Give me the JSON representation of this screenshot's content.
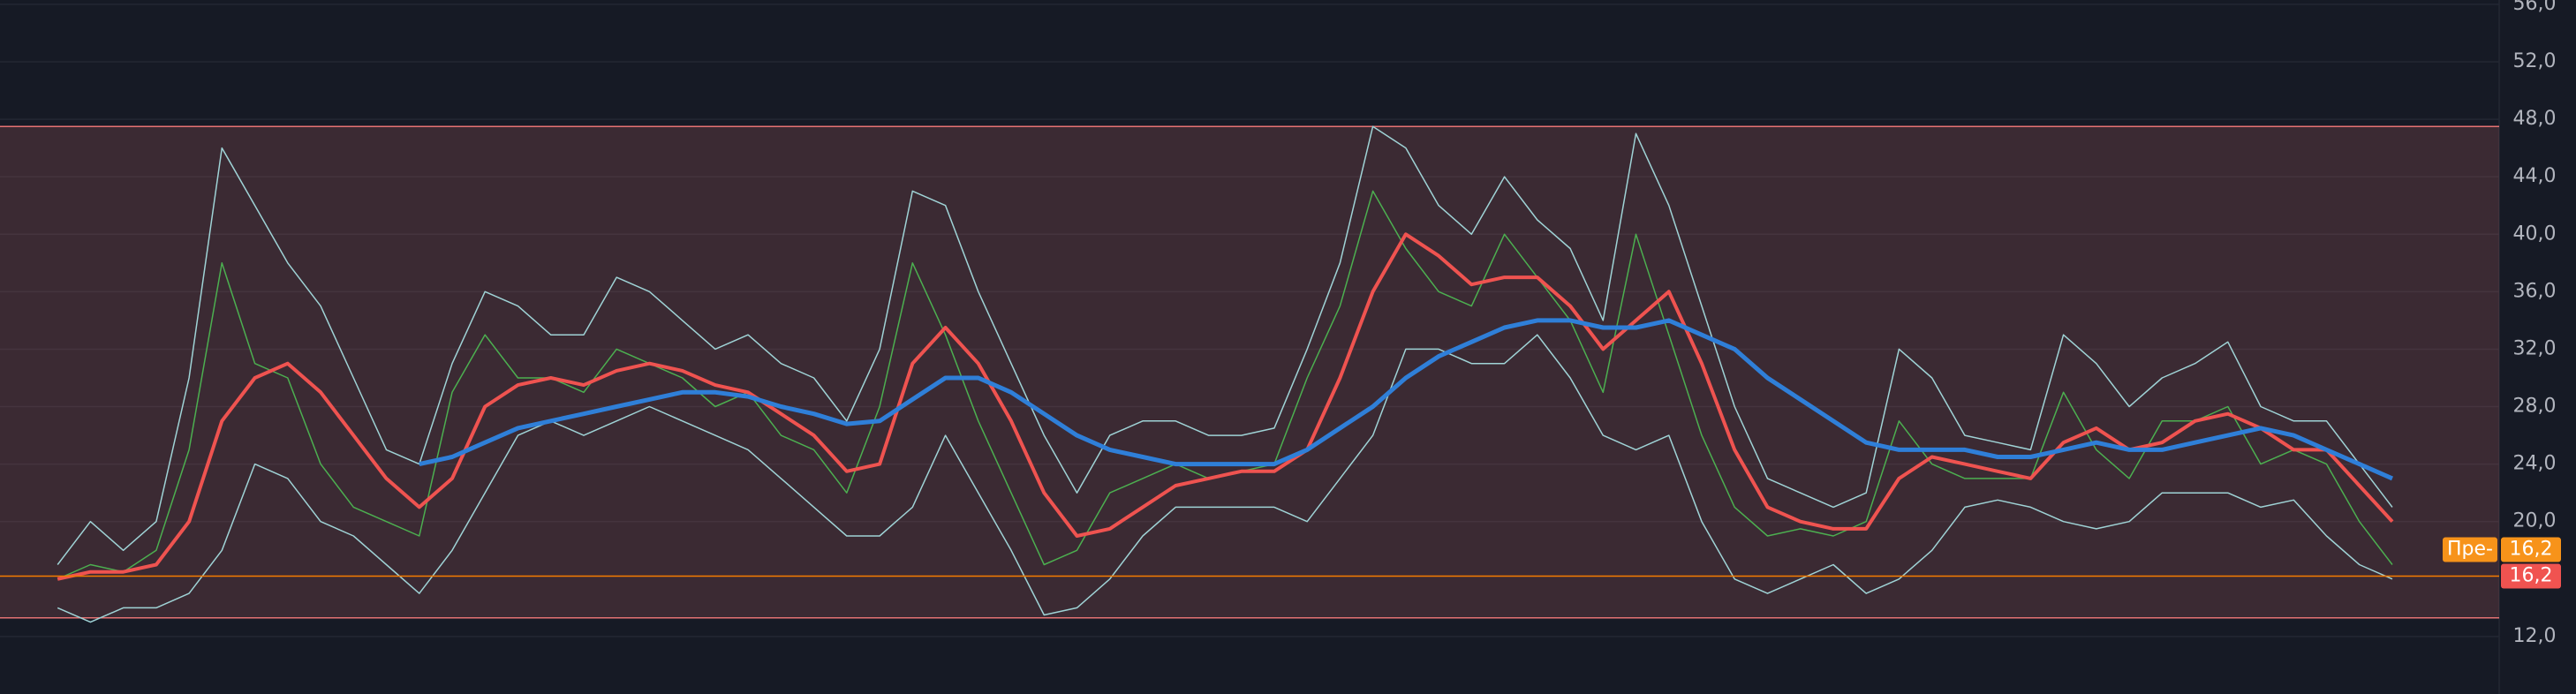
{
  "chart_data": {
    "type": "line",
    "ylim": [
      8,
      56.3
    ],
    "xlim": [
      -1.75,
      74.25
    ],
    "yticks": [
      {
        "value": 12,
        "label": "12,0"
      },
      {
        "value": 20,
        "label": "20,0"
      },
      {
        "value": 24,
        "label": "24,0"
      },
      {
        "value": 28,
        "label": "28,0"
      },
      {
        "value": 32,
        "label": "32,0"
      },
      {
        "value": 36,
        "label": "36,0"
      },
      {
        "value": 40,
        "label": "40,0"
      },
      {
        "value": 44,
        "label": "44,0"
      },
      {
        "value": 48,
        "label": "48,0"
      },
      {
        "value": 52,
        "label": "52,0"
      },
      {
        "value": 56,
        "label": "56,0"
      }
    ],
    "grid": true,
    "x": [
      0,
      1,
      2,
      3,
      4,
      5,
      6,
      7,
      8,
      9,
      10,
      11,
      12,
      13,
      14,
      15,
      16,
      17,
      18,
      19,
      20,
      21,
      22,
      23,
      24,
      25,
      26,
      27,
      28,
      29,
      30,
      31,
      32,
      33,
      34,
      35,
      36,
      37,
      38,
      39,
      40,
      41,
      42,
      43,
      44,
      45,
      46,
      47,
      48,
      49,
      50,
      51,
      52,
      53,
      54,
      55,
      56,
      57,
      58,
      59,
      60,
      61,
      62,
      63,
      64,
      65,
      66,
      67,
      68,
      69,
      70,
      71
    ],
    "zone": {
      "low": 13.3,
      "high": 47.5,
      "color": "#e57373"
    },
    "price_line": {
      "value": 16.2,
      "color": "#f57c00"
    },
    "price_badges": [
      {
        "label": "Пре-",
        "value": 16.2,
        "value_label": "16,2",
        "color": "#f7931a"
      },
      {
        "value": 16.2,
        "value_label": "16,2",
        "color": "#f05350"
      }
    ],
    "series": [
      {
        "color": "#9fd3d6",
        "width": 1.5,
        "values": [
          17,
          20,
          18,
          20,
          30,
          46,
          42,
          38,
          35,
          30,
          25,
          24,
          31,
          36,
          35,
          33,
          33,
          37,
          36,
          34,
          32,
          33,
          31,
          30,
          27,
          32,
          43,
          42,
          36,
          31,
          26,
          22,
          26,
          27,
          27,
          26,
          26,
          26.5,
          32,
          38,
          47.5,
          46,
          42,
          40,
          44,
          41,
          39,
          34,
          47,
          42,
          35,
          28,
          23,
          22,
          21,
          22,
          32,
          30,
          26,
          25.5,
          25,
          33,
          31,
          28,
          30,
          31,
          32.5,
          28,
          27,
          27,
          24,
          21
        ]
      },
      {
        "color": "#9fd3d6",
        "width": 1.5,
        "values": [
          14,
          13,
          14,
          14,
          15,
          18,
          24,
          23,
          20,
          19,
          17,
          15,
          18,
          22,
          26,
          27,
          26,
          27,
          28,
          27,
          26,
          25,
          23,
          21,
          19,
          19,
          21,
          26,
          22,
          18,
          13.5,
          14,
          16,
          19,
          21,
          21,
          21,
          21,
          20,
          23,
          26,
          32,
          32,
          31,
          31,
          33,
          30,
          26,
          25,
          26,
          20,
          16,
          15,
          16,
          17,
          15,
          16,
          18,
          21,
          21.5,
          21,
          20,
          19.5,
          20,
          22,
          22,
          22,
          21,
          21.5,
          19,
          17,
          16
        ]
      },
      {
        "color": "#4caf50",
        "width": 1.5,
        "values": [
          16,
          17,
          16.5,
          18,
          25,
          38,
          31,
          30,
          24,
          21,
          20,
          19,
          29,
          33,
          30,
          30,
          29,
          32,
          31,
          30,
          28,
          29,
          26,
          25,
          22,
          28,
          38,
          33,
          27,
          22,
          17,
          18,
          22,
          23,
          24,
          23,
          23.5,
          24,
          30,
          35,
          43,
          39,
          36,
          35,
          40,
          37,
          34,
          29,
          40,
          33,
          26,
          21,
          19,
          19.5,
          19,
          20,
          27,
          24,
          23,
          23,
          23,
          29,
          25,
          23,
          27,
          27,
          28,
          24,
          25,
          24,
          20,
          17
        ]
      },
      {
        "color": "#ef5350",
        "width": 4,
        "values": [
          16,
          16.5,
          16.5,
          17,
          20,
          27,
          30,
          31,
          29,
          26,
          23,
          21,
          23,
          28,
          29.5,
          30,
          29.5,
          30.5,
          31,
          30.5,
          29.5,
          29,
          27.5,
          26,
          23.5,
          24,
          31,
          33.5,
          31,
          27,
          22,
          19,
          19.5,
          21,
          22.5,
          23,
          23.5,
          23.5,
          25,
          30,
          36,
          40,
          38.5,
          36.5,
          37,
          37,
          35,
          32,
          34,
          36,
          31,
          25,
          21,
          20,
          19.5,
          19.5,
          23,
          24.5,
          24,
          23.5,
          23,
          25.5,
          26.5,
          25,
          25.5,
          27,
          27.5,
          26.5,
          25,
          25,
          22.5,
          20
        ]
      },
      {
        "color": "#2f7fd8",
        "width": 5,
        "values": [
          null,
          null,
          null,
          null,
          null,
          null,
          null,
          null,
          null,
          null,
          null,
          24,
          24.5,
          25.5,
          26.5,
          27,
          27.5,
          28,
          28.5,
          29,
          29,
          28.7,
          28,
          27.5,
          26.8,
          27,
          28.5,
          30,
          30,
          29,
          27.5,
          26,
          25,
          24.5,
          24,
          24,
          24,
          24,
          25,
          26.5,
          28,
          30,
          31.5,
          32.5,
          33.5,
          34,
          34,
          33.5,
          33.5,
          34,
          33,
          32,
          30,
          28.5,
          27,
          25.5,
          25,
          25,
          25,
          24.5,
          24.5,
          25,
          25.5,
          25,
          25,
          25.5,
          26,
          26.5,
          26,
          25,
          24,
          23
        ]
      }
    ]
  }
}
